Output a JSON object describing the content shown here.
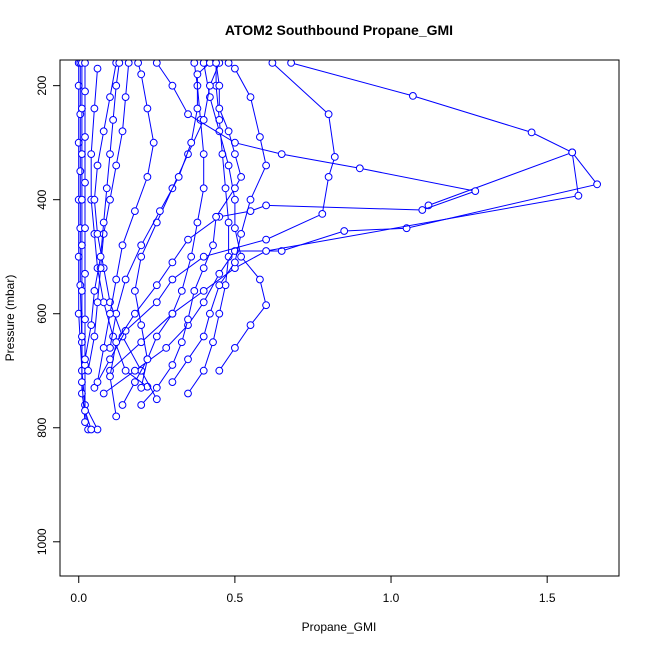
{
  "chart_data": {
    "type": "line",
    "title": "ATOM2 Southbound Propane_GMI",
    "xlabel": "Propane_GMI",
    "ylabel": "Pressure (mbar)",
    "xlim": [
      -0.06,
      1.73
    ],
    "ylim": [
      1060,
      155
    ],
    "y_reversed": true,
    "x_ticks": [
      {
        "value": 0.0,
        "label": "0.0"
      },
      {
        "value": 0.5,
        "label": "0.5"
      },
      {
        "value": 1.0,
        "label": "1.0"
      },
      {
        "value": 1.5,
        "label": "1.5"
      }
    ],
    "y_ticks": [
      {
        "value": 200,
        "label": "200"
      },
      {
        "value": 400,
        "label": "400"
      },
      {
        "value": 600,
        "label": "600"
      },
      {
        "value": 800,
        "label": "800"
      },
      {
        "value": 1000,
        "label": "1000"
      }
    ],
    "marker": "open-circle",
    "series_color": "#0000ff",
    "grid": false,
    "legend": "none",
    "series": [
      {
        "points": [
          [
            0.06,
            803
          ],
          [
            0.02,
            760
          ],
          [
            0.01,
            700
          ],
          [
            0.0,
            600
          ],
          [
            0.0,
            500
          ],
          [
            0.0,
            400
          ],
          [
            0.0,
            300
          ],
          [
            0.0,
            200
          ],
          [
            0.0,
            160
          ]
        ]
      },
      {
        "points": [
          [
            0.03,
            803
          ],
          [
            0.01,
            740
          ],
          [
            0.01,
            650
          ],
          [
            0.005,
            550
          ],
          [
            0.005,
            450
          ],
          [
            0.005,
            350
          ],
          [
            0.005,
            250
          ],
          [
            0.005,
            160
          ]
        ]
      },
      {
        "points": [
          [
            0.02,
            790
          ],
          [
            0.01,
            720
          ],
          [
            0.01,
            640
          ],
          [
            0.01,
            560
          ],
          [
            0.01,
            480
          ],
          [
            0.01,
            400
          ],
          [
            0.01,
            320
          ],
          [
            0.01,
            240
          ],
          [
            0.01,
            160
          ]
        ]
      },
      {
        "points": [
          [
            0.04,
            803
          ],
          [
            0.02,
            770
          ],
          [
            0.02,
            690
          ],
          [
            0.02,
            610
          ],
          [
            0.02,
            530
          ],
          [
            0.02,
            450
          ],
          [
            0.02,
            370
          ],
          [
            0.02,
            290
          ],
          [
            0.02,
            210
          ],
          [
            0.02,
            160
          ]
        ]
      },
      {
        "points": [
          [
            0.22,
            728
          ],
          [
            0.15,
            700
          ],
          [
            0.11,
            640
          ],
          [
            0.08,
            580
          ],
          [
            0.06,
            520
          ],
          [
            0.05,
            460
          ],
          [
            0.04,
            400
          ],
          [
            0.04,
            320
          ],
          [
            0.05,
            240
          ],
          [
            0.06,
            170
          ]
        ]
      },
      {
        "points": [
          [
            0.25,
            750
          ],
          [
            0.2,
            700
          ],
          [
            0.14,
            640
          ],
          [
            0.1,
            580
          ],
          [
            0.08,
            520
          ],
          [
            0.06,
            460
          ],
          [
            0.05,
            400
          ],
          [
            0.06,
            340
          ],
          [
            0.08,
            280
          ],
          [
            0.1,
            220
          ],
          [
            0.12,
            160
          ]
        ]
      },
      {
        "points": [
          [
            0.14,
            760
          ],
          [
            0.18,
            720
          ],
          [
            0.22,
            680
          ],
          [
            0.25,
            640
          ],
          [
            0.3,
            600
          ],
          [
            0.33,
            560
          ],
          [
            0.36,
            500
          ],
          [
            0.38,
            440
          ],
          [
            0.4,
            380
          ],
          [
            0.4,
            320
          ],
          [
            0.39,
            260
          ],
          [
            0.38,
            200
          ],
          [
            0.37,
            160
          ]
        ]
      },
      {
        "points": [
          [
            0.35,
            740
          ],
          [
            0.4,
            700
          ],
          [
            0.43,
            650
          ],
          [
            0.45,
            600
          ],
          [
            0.47,
            550
          ],
          [
            0.48,
            500
          ],
          [
            0.48,
            440
          ],
          [
            0.47,
            380
          ],
          [
            0.46,
            320
          ],
          [
            0.45,
            260
          ],
          [
            0.44,
            200
          ],
          [
            0.44,
            160
          ]
        ]
      },
      {
        "points": [
          [
            0.45,
            700
          ],
          [
            0.5,
            660
          ],
          [
            0.55,
            620
          ],
          [
            0.6,
            585
          ],
          [
            0.58,
            540
          ],
          [
            0.52,
            500
          ],
          [
            0.5,
            450
          ],
          [
            0.5,
            400
          ],
          [
            0.48,
            340
          ],
          [
            0.45,
            280
          ],
          [
            0.42,
            220
          ],
          [
            0.4,
            160
          ]
        ]
      },
      {
        "points": [
          [
            0.08,
            740
          ],
          [
            0.18,
            700
          ],
          [
            0.28,
            660
          ],
          [
            0.35,
            620
          ],
          [
            0.4,
            580
          ],
          [
            0.45,
            530
          ],
          [
            0.5,
            490
          ],
          [
            0.65,
            490
          ],
          [
            0.85,
            455
          ],
          [
            1.05,
            450
          ],
          [
            1.66,
            373
          ],
          [
            1.58,
            317
          ],
          [
            1.45,
            282
          ],
          [
            1.07,
            218
          ],
          [
            0.68,
            160
          ]
        ]
      },
      {
        "points": [
          [
            0.1,
            700
          ],
          [
            0.2,
            650
          ],
          [
            0.3,
            600
          ],
          [
            0.4,
            560
          ],
          [
            0.5,
            520
          ],
          [
            0.6,
            490
          ],
          [
            1.6,
            393
          ],
          [
            1.58,
            317
          ],
          [
            1.12,
            410
          ]
        ]
      },
      {
        "points": [
          [
            0.05,
            730
          ],
          [
            0.1,
            680
          ],
          [
            0.15,
            630
          ],
          [
            0.25,
            580
          ],
          [
            0.3,
            540
          ],
          [
            0.4,
            500
          ],
          [
            0.6,
            470
          ],
          [
            0.78,
            425
          ],
          [
            0.8,
            360
          ],
          [
            0.82,
            325
          ],
          [
            0.8,
            250
          ],
          [
            0.62,
            160
          ]
        ]
      },
      {
        "points": [
          [
            0.12,
            780
          ],
          [
            0.1,
            710
          ],
          [
            0.12,
            650
          ],
          [
            0.18,
            600
          ],
          [
            0.25,
            550
          ],
          [
            0.3,
            510
          ],
          [
            0.35,
            470
          ],
          [
            0.45,
            430
          ],
          [
            0.55,
            420
          ],
          [
            0.6,
            410
          ],
          [
            1.1,
            418
          ],
          [
            1.27,
            385
          ],
          [
            0.9,
            345
          ],
          [
            0.65,
            320
          ],
          [
            0.5,
            300
          ],
          [
            0.35,
            250
          ],
          [
            0.3,
            200
          ],
          [
            0.25,
            160
          ]
        ]
      },
      {
        "points": [
          [
            0.2,
            730
          ],
          [
            0.22,
            680
          ],
          [
            0.2,
            620
          ],
          [
            0.18,
            560
          ],
          [
            0.2,
            500
          ],
          [
            0.25,
            440
          ],
          [
            0.3,
            380
          ],
          [
            0.35,
            320
          ],
          [
            0.4,
            260
          ],
          [
            0.42,
            200
          ],
          [
            0.45,
            160
          ]
        ]
      },
      {
        "points": [
          [
            0.1,
            660
          ],
          [
            0.12,
            600
          ],
          [
            0.15,
            540
          ],
          [
            0.2,
            480
          ],
          [
            0.26,
            420
          ],
          [
            0.32,
            360
          ],
          [
            0.36,
            300
          ],
          [
            0.38,
            240
          ],
          [
            0.38,
            180
          ],
          [
            0.42,
            160
          ]
        ]
      },
      {
        "points": [
          [
            0.06,
            720
          ],
          [
            0.08,
            660
          ],
          [
            0.1,
            600
          ],
          [
            0.12,
            540
          ],
          [
            0.14,
            480
          ],
          [
            0.18,
            420
          ],
          [
            0.22,
            360
          ],
          [
            0.24,
            300
          ],
          [
            0.22,
            240
          ],
          [
            0.2,
            180
          ],
          [
            0.19,
            160
          ]
        ]
      },
      {
        "points": [
          [
            0.03,
            700
          ],
          [
            0.05,
            640
          ],
          [
            0.06,
            580
          ],
          [
            0.07,
            520
          ],
          [
            0.08,
            460
          ],
          [
            0.1,
            400
          ],
          [
            0.12,
            340
          ],
          [
            0.14,
            280
          ],
          [
            0.15,
            220
          ],
          [
            0.16,
            160
          ]
        ]
      },
      {
        "points": [
          [
            0.02,
            680
          ],
          [
            0.04,
            620
          ],
          [
            0.05,
            560
          ],
          [
            0.07,
            500
          ],
          [
            0.08,
            440
          ],
          [
            0.09,
            380
          ],
          [
            0.1,
            320
          ],
          [
            0.11,
            260
          ],
          [
            0.12,
            200
          ],
          [
            0.13,
            160
          ]
        ]
      },
      {
        "points": [
          [
            0.3,
            720
          ],
          [
            0.35,
            680
          ],
          [
            0.4,
            640
          ],
          [
            0.42,
            600
          ],
          [
            0.45,
            550
          ],
          [
            0.5,
            510
          ],
          [
            0.52,
            460
          ],
          [
            0.55,
            400
          ],
          [
            0.6,
            340
          ],
          [
            0.58,
            290
          ],
          [
            0.55,
            220
          ],
          [
            0.5,
            170
          ],
          [
            0.48,
            160
          ]
        ]
      },
      {
        "points": [
          [
            0.2,
            760
          ],
          [
            0.25,
            730
          ],
          [
            0.3,
            690
          ],
          [
            0.33,
            650
          ],
          [
            0.35,
            610
          ],
          [
            0.37,
            560
          ],
          [
            0.4,
            520
          ],
          [
            0.43,
            480
          ],
          [
            0.44,
            430
          ],
          [
            0.5,
            380
          ],
          [
            0.52,
            360
          ],
          [
            0.5,
            320
          ],
          [
            0.48,
            280
          ],
          [
            0.45,
            240
          ],
          [
            0.45,
            200
          ],
          [
            0.44,
            160
          ]
        ]
      }
    ]
  }
}
